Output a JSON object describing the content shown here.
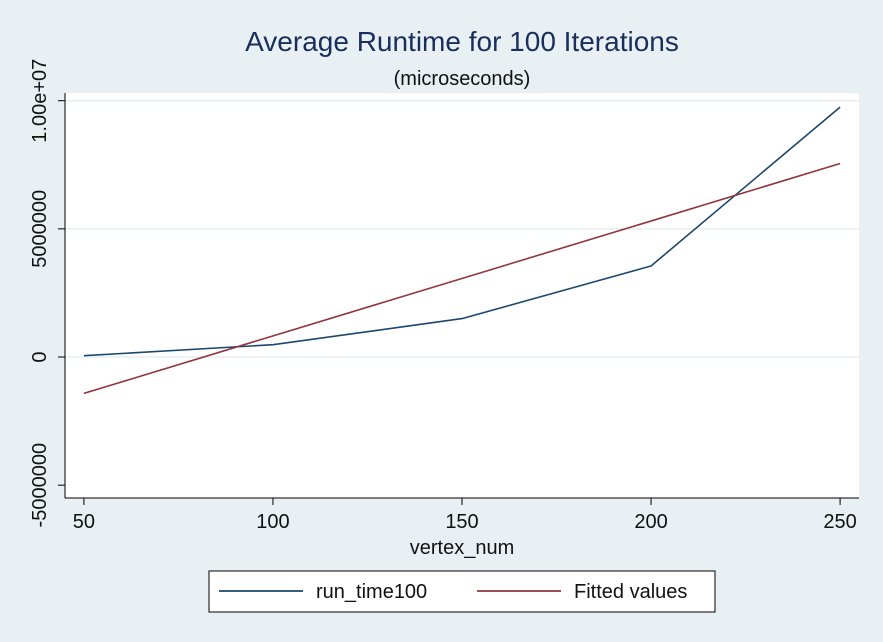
{
  "chart_data": {
    "type": "line",
    "title": "Average Runtime for 100 Iterations",
    "subtitle": "(microseconds)",
    "xlabel": "vertex_num",
    "ylabel": "",
    "xlim": [
      45,
      255
    ],
    "ylim": [
      -5500000,
      10300000
    ],
    "x_ticks": [
      {
        "value": 50,
        "label": "50"
      },
      {
        "value": 100,
        "label": "100"
      },
      {
        "value": 150,
        "label": "150"
      },
      {
        "value": 200,
        "label": "200"
      },
      {
        "value": 250,
        "label": "250"
      }
    ],
    "y_ticks": [
      {
        "value": -5000000,
        "label": "-5000000"
      },
      {
        "value": 0,
        "label": "0"
      },
      {
        "value": 5000000,
        "label": "5000000"
      },
      {
        "value": 10000000,
        "label": "1.00e+07"
      }
    ],
    "grid": "horizontal",
    "legend_position": "bottom",
    "background_color": "#e8f0f3",
    "plot_background_color": "#ffffff",
    "series": [
      {
        "name": "run_time100",
        "color": "#1a476f",
        "x": [
          50,
          100,
          150,
          200,
          250
        ],
        "y": [
          50000,
          480000,
          1500000,
          3550000,
          9750000
        ]
      },
      {
        "name": "Fitted values",
        "color": "#90353b",
        "x": [
          50,
          250
        ],
        "y": [
          -1420000,
          7550000
        ]
      }
    ]
  }
}
